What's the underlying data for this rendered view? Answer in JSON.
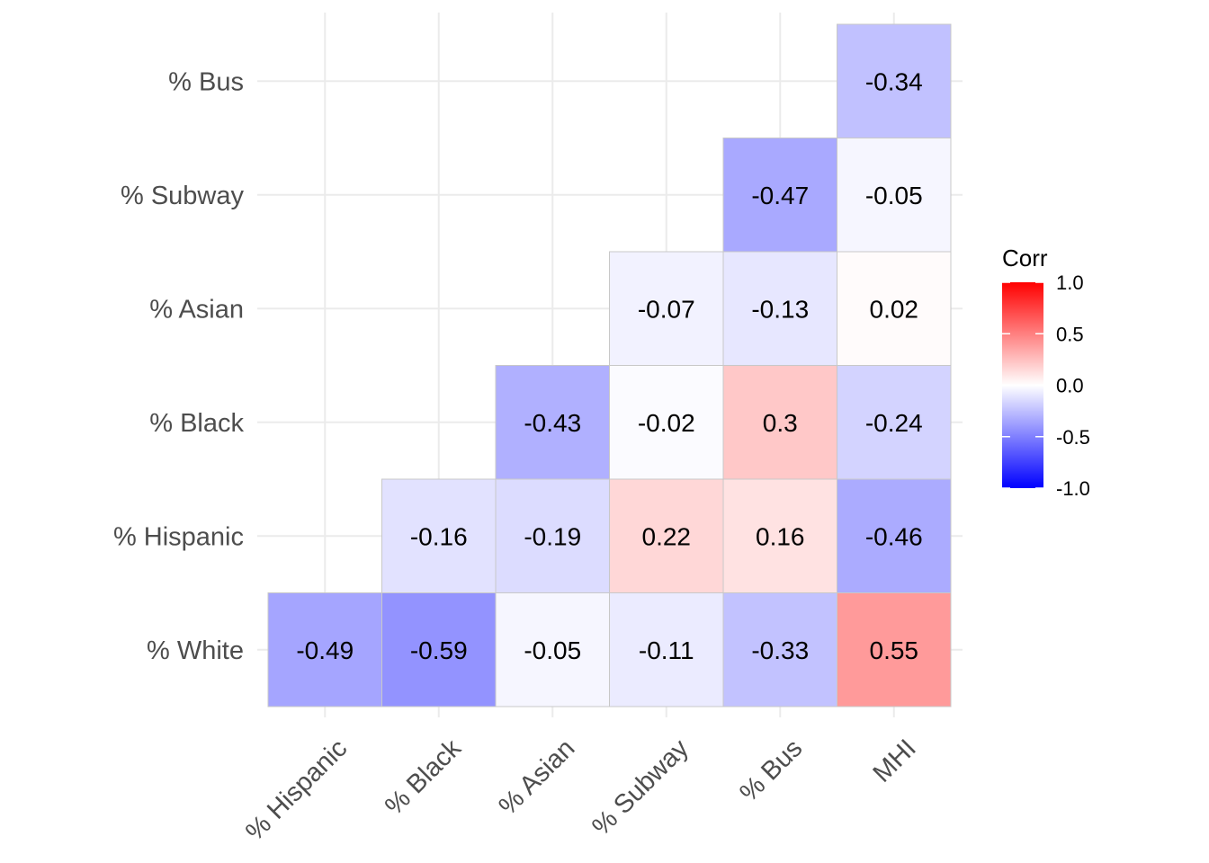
{
  "chart_data": {
    "type": "heatmap",
    "title": "",
    "xlabel": "",
    "ylabel": "",
    "x_categories": [
      "% Hispanic",
      "% Black",
      "% Asian",
      "% Subway",
      "% Bus",
      "MHI"
    ],
    "y_categories": [
      "% White",
      "% Hispanic",
      "% Black",
      "% Asian",
      "% Subway",
      "% Bus"
    ],
    "cells": [
      {
        "x": "% Hispanic",
        "y": "% White",
        "value": -0.49,
        "label": "-0.49"
      },
      {
        "x": "% Black",
        "y": "% White",
        "value": -0.59,
        "label": "-0.59"
      },
      {
        "x": "% Asian",
        "y": "% White",
        "value": -0.05,
        "label": "-0.05"
      },
      {
        "x": "% Subway",
        "y": "% White",
        "value": -0.11,
        "label": "-0.11"
      },
      {
        "x": "% Bus",
        "y": "% White",
        "value": -0.33,
        "label": "-0.33"
      },
      {
        "x": "MHI",
        "y": "% White",
        "value": 0.55,
        "label": "0.55"
      },
      {
        "x": "% Black",
        "y": "% Hispanic",
        "value": -0.16,
        "label": "-0.16"
      },
      {
        "x": "% Asian",
        "y": "% Hispanic",
        "value": -0.19,
        "label": "-0.19"
      },
      {
        "x": "% Subway",
        "y": "% Hispanic",
        "value": 0.22,
        "label": "0.22"
      },
      {
        "x": "% Bus",
        "y": "% Hispanic",
        "value": 0.16,
        "label": "0.16"
      },
      {
        "x": "MHI",
        "y": "% Hispanic",
        "value": -0.46,
        "label": "-0.46"
      },
      {
        "x": "% Asian",
        "y": "% Black",
        "value": -0.43,
        "label": "-0.43"
      },
      {
        "x": "% Subway",
        "y": "% Black",
        "value": -0.02,
        "label": "-0.02"
      },
      {
        "x": "% Bus",
        "y": "% Black",
        "value": 0.3,
        "label": "0.3"
      },
      {
        "x": "MHI",
        "y": "% Black",
        "value": -0.24,
        "label": "-0.24"
      },
      {
        "x": "% Subway",
        "y": "% Asian",
        "value": -0.07,
        "label": "-0.07"
      },
      {
        "x": "% Bus",
        "y": "% Asian",
        "value": -0.13,
        "label": "-0.13"
      },
      {
        "x": "MHI",
        "y": "% Asian",
        "value": 0.02,
        "label": "0.02"
      },
      {
        "x": "% Bus",
        "y": "% Subway",
        "value": -0.47,
        "label": "-0.47"
      },
      {
        "x": "MHI",
        "y": "% Subway",
        "value": -0.05,
        "label": "-0.05"
      },
      {
        "x": "MHI",
        "y": "% Bus",
        "value": -0.34,
        "label": "-0.34"
      }
    ],
    "legend": {
      "title": "Corr",
      "position": "right",
      "range": [
        -1.0,
        1.0
      ],
      "ticks": [
        {
          "value": 1.0,
          "label": "1.0"
        },
        {
          "value": 0.5,
          "label": "0.5"
        },
        {
          "value": 0.0,
          "label": "0.0"
        },
        {
          "value": -0.5,
          "label": "-0.5"
        },
        {
          "value": -1.0,
          "label": "-1.0"
        }
      ],
      "colors": {
        "low": "#0000ff",
        "mid": "#ffffff",
        "high": "#ff0000"
      }
    },
    "grid": true
  }
}
